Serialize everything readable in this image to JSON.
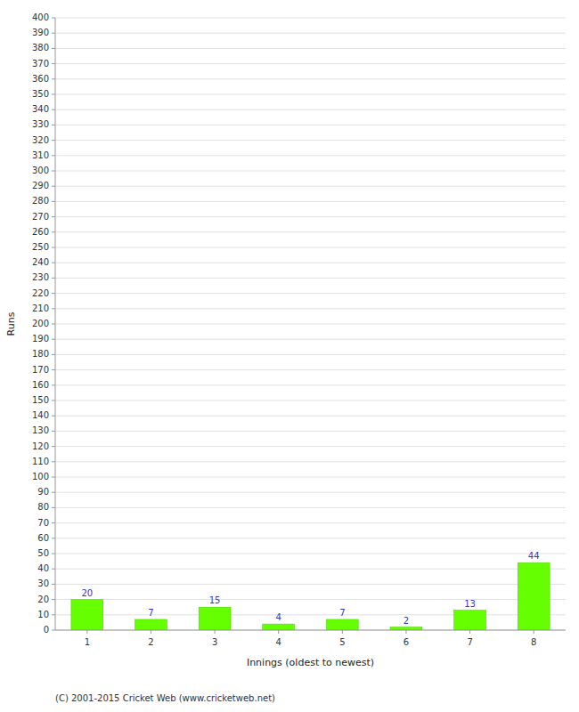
{
  "chart_data": {
    "type": "bar",
    "categories": [
      "1",
      "2",
      "3",
      "4",
      "5",
      "6",
      "7",
      "8"
    ],
    "values": [
      20,
      7,
      15,
      4,
      7,
      2,
      13,
      44
    ],
    "color": "#66ff00",
    "xlabel": "Innings (oldest to newest)",
    "ylabel": "Runs",
    "ylim": [
      0,
      400
    ],
    "yticks": [
      0,
      10,
      20,
      30,
      40,
      50,
      60,
      70,
      80,
      90,
      100,
      110,
      120,
      130,
      140,
      150,
      160,
      170,
      180,
      190,
      200,
      210,
      220,
      230,
      240,
      250,
      260,
      270,
      280,
      290,
      300,
      310,
      320,
      330,
      340,
      350,
      360,
      370,
      380,
      390,
      400
    ],
    "grid": true,
    "data_labels": true,
    "footer": "(C) 2001-2015 Cricket Web (www.cricketweb.net)"
  }
}
